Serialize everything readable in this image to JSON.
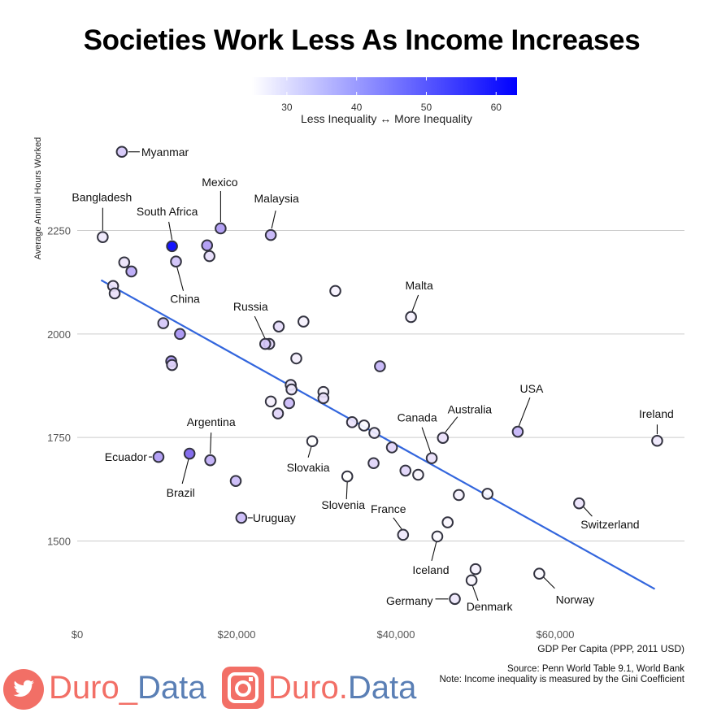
{
  "chart_data": {
    "type": "scatter",
    "title": "Societies Work Less As Income Increases",
    "xlabel": "GDP Per Capita (PPP, 2011 USD)",
    "ylabel": "Average Annual Hours Worked",
    "xlim": [
      0,
      76000
    ],
    "ylim": [
      1300,
      2480
    ],
    "x_ticks": [
      0,
      20000,
      40000,
      60000
    ],
    "x_tick_labels": [
      "$0",
      "$20,000",
      "$40,000",
      "$60,000"
    ],
    "y_ticks": [
      1500,
      1750,
      2000,
      2250
    ],
    "y_tick_labels": [
      "1500",
      "1750",
      "2000",
      "2250"
    ],
    "grid": "horizontal",
    "color_scale": {
      "variable": "Gini Coefficient",
      "min": 25,
      "max": 63,
      "low_color": "#ffffff",
      "high_color": "#0000ff",
      "ticks": [
        30,
        40,
        50,
        60
      ],
      "caption": "Less Inequality ↔ More Inequality",
      "placement": "top"
    },
    "trend_line": {
      "x": [
        3000,
        72500
      ],
      "y": [
        2130,
        1384
      ],
      "color": "#3366dd"
    },
    "points": [
      {
        "label": "Myanmar",
        "x": 5600,
        "y": 2440,
        "gini": 38
      },
      {
        "label": "Bangladesh",
        "x": 3200,
        "y": 2234,
        "gini": 32
      },
      {
        "label": "South Africa",
        "x": 11900,
        "y": 2212,
        "gini": 63
      },
      {
        "label": "Mexico",
        "x": 18000,
        "y": 2255,
        "gini": 45
      },
      {
        "label": "Malaysia",
        "x": 24300,
        "y": 2239,
        "gini": 41
      },
      {
        "label": "China",
        "x": 12400,
        "y": 2175,
        "gini": 39
      },
      {
        "label": "Malta",
        "x": 41900,
        "y": 2041,
        "gini": 29
      },
      {
        "label": "Russia",
        "x": 23600,
        "y": 1976,
        "gini": 38
      },
      {
        "label": "USA",
        "x": 55300,
        "y": 1764,
        "gini": 41
      },
      {
        "label": "Ireland",
        "x": 72800,
        "y": 1742,
        "gini": 32
      },
      {
        "label": "Australia",
        "x": 45900,
        "y": 1749,
        "gini": 34
      },
      {
        "label": "Canada",
        "x": 44500,
        "y": 1700,
        "gini": 34
      },
      {
        "label": "Argentina",
        "x": 16700,
        "y": 1695,
        "gini": 42
      },
      {
        "label": "Ecuador",
        "x": 10200,
        "y": 1703,
        "gini": 45
      },
      {
        "label": "Brazil",
        "x": 14100,
        "y": 1711,
        "gini": 53
      },
      {
        "label": "Slovakia",
        "x": 29500,
        "y": 1741,
        "gini": 25
      },
      {
        "label": "Slovenia",
        "x": 33900,
        "y": 1656,
        "gini": 25
      },
      {
        "label": "Uruguay",
        "x": 20600,
        "y": 1556,
        "gini": 40
      },
      {
        "label": "France",
        "x": 40900,
        "y": 1515,
        "gini": 32
      },
      {
        "label": "Iceland",
        "x": 45200,
        "y": 1511,
        "gini": 27
      },
      {
        "label": "Switzerland",
        "x": 63000,
        "y": 1591,
        "gini": 33
      },
      {
        "label": "Norway",
        "x": 58000,
        "y": 1421,
        "gini": 27
      },
      {
        "label": "Germany",
        "x": 47400,
        "y": 1360,
        "gini": 32
      },
      {
        "label": "Denmark",
        "x": 49500,
        "y": 1405,
        "gini": 28
      },
      {
        "label": "",
        "x": 16300,
        "y": 2214,
        "gini": 45
      },
      {
        "label": "",
        "x": 16600,
        "y": 2188,
        "gini": 35
      },
      {
        "label": "",
        "x": 5900,
        "y": 2173,
        "gini": 33
      },
      {
        "label": "",
        "x": 6800,
        "y": 2151,
        "gini": 43
      },
      {
        "label": "",
        "x": 4500,
        "y": 2116,
        "gini": 33
      },
      {
        "label": "",
        "x": 4700,
        "y": 2098,
        "gini": 34
      },
      {
        "label": "",
        "x": 32400,
        "y": 2104,
        "gini": 29
      },
      {
        "label": "",
        "x": 10800,
        "y": 2026,
        "gini": 38
      },
      {
        "label": "",
        "x": 12900,
        "y": 2000,
        "gini": 46
      },
      {
        "label": "",
        "x": 25300,
        "y": 2018,
        "gini": 35
      },
      {
        "label": "",
        "x": 28400,
        "y": 2030,
        "gini": 29
      },
      {
        "label": "",
        "x": 24100,
        "y": 1976,
        "gini": 36
      },
      {
        "label": "",
        "x": 27500,
        "y": 1941,
        "gini": 30
      },
      {
        "label": "",
        "x": 38000,
        "y": 1922,
        "gini": 41
      },
      {
        "label": "",
        "x": 11800,
        "y": 1934,
        "gini": 46
      },
      {
        "label": "",
        "x": 11900,
        "y": 1925,
        "gini": 36
      },
      {
        "label": "",
        "x": 26800,
        "y": 1877,
        "gini": 32
      },
      {
        "label": "",
        "x": 26900,
        "y": 1866,
        "gini": 32
      },
      {
        "label": "",
        "x": 30900,
        "y": 1860,
        "gini": 28
      },
      {
        "label": "",
        "x": 30900,
        "y": 1845,
        "gini": 34
      },
      {
        "label": "",
        "x": 24300,
        "y": 1837,
        "gini": 30
      },
      {
        "label": "",
        "x": 26600,
        "y": 1833,
        "gini": 40
      },
      {
        "label": "",
        "x": 25200,
        "y": 1808,
        "gini": 36
      },
      {
        "label": "",
        "x": 34500,
        "y": 1787,
        "gini": 33
      },
      {
        "label": "",
        "x": 36000,
        "y": 1779,
        "gini": 27
      },
      {
        "label": "",
        "x": 37300,
        "y": 1761,
        "gini": 31
      },
      {
        "label": "",
        "x": 39500,
        "y": 1726,
        "gini": 36
      },
      {
        "label": "",
        "x": 37200,
        "y": 1688,
        "gini": 36
      },
      {
        "label": "",
        "x": 41200,
        "y": 1670,
        "gini": 36
      },
      {
        "label": "",
        "x": 42800,
        "y": 1660,
        "gini": 28
      },
      {
        "label": "",
        "x": 19900,
        "y": 1645,
        "gini": 40
      },
      {
        "label": "",
        "x": 47900,
        "y": 1611,
        "gini": 29
      },
      {
        "label": "",
        "x": 51500,
        "y": 1614,
        "gini": 27
      },
      {
        "label": "",
        "x": 46500,
        "y": 1545,
        "gini": 28
      },
      {
        "label": "",
        "x": 50000,
        "y": 1432,
        "gini": 29
      }
    ]
  },
  "legend": {
    "ticks": [
      "30",
      "40",
      "50",
      "60"
    ],
    "caption": "Less Inequality ↔ More Inequality"
  },
  "footer": {
    "source": "Source: Penn World Table 9.1, World Bank",
    "note": "Note: Income inequality is measured by the Gini Coefficient"
  },
  "branding": {
    "twitter_handle_a": "Duro_",
    "twitter_handle_b": "Data",
    "instagram_handle_a": "Duro",
    "instagram_handle_dot": ".",
    "instagram_handle_b": "Data",
    "brand_color_red": "#f26f66",
    "brand_color_blue": "#5a7fb5"
  }
}
